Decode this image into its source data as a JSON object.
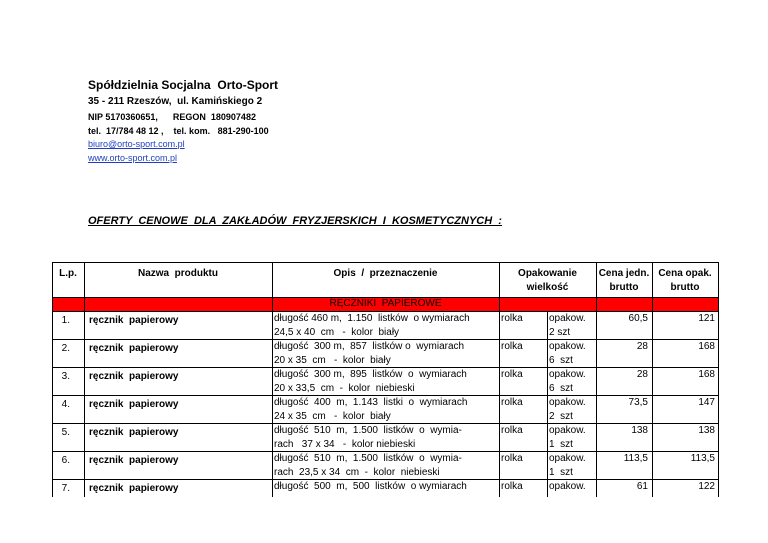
{
  "header": {
    "company": "Spółdzielnia Socjalna  Orto-Sport",
    "address": "35 - 211 Rzeszów,  ul. Kamińskiego 2",
    "ids": "NIP 5170360651,      REGON  180907482",
    "phones": "tel.  17/784 48 12 ,    tel. kom.   881-290-100",
    "email": "biuro@orto-sport.com.pl",
    "www": "www.orto-sport.com.pl"
  },
  "title": "OFERTY  CENOWE  DLA  ZAKŁADÓW  FRYZJERSKICH  I  KOSMETYCZNYCH  :",
  "table": {
    "columns": {
      "lp": [
        "L.p."
      ],
      "name": [
        "Nazwa  produktu"
      ],
      "desc": [
        "Opis  /  przeznaczenie"
      ],
      "pack": [
        "Opakowanie",
        "wielkość"
      ],
      "price_unit": [
        "Cena jedn.",
        "brutto"
      ],
      "price_pack": [
        "Cena opak.",
        "brutto"
      ]
    },
    "section": "RĘCZNIKI  PAPIEROWE",
    "rows": [
      {
        "lp": "1.",
        "name": "ręcznik  papierowy",
        "desc": [
          "długość 460 m,  1.150  listków  o wymiarach",
          "24,5 x 40  cm   -  kolor  biały"
        ],
        "unit": "rolka",
        "pack": [
          "opakow.",
          "2 szt"
        ],
        "price_unit": "60,5",
        "price_pack": "121"
      },
      {
        "lp": "2.",
        "name": "ręcznik  papierowy",
        "desc": [
          "długość  300 m,  857  listków o  wymiarach",
          "20 x 35  cm   -  kolor  biały"
        ],
        "unit": "rolka",
        "pack": [
          "opakow.",
          "6  szt"
        ],
        "price_unit": "28",
        "price_pack": "168"
      },
      {
        "lp": "3.",
        "name": "ręcznik  papierowy",
        "desc": [
          "długość  300 m,  895  listków  o  wymiarach",
          "20 x 33,5  cm  -  kolor  niebieski"
        ],
        "unit": "rolka",
        "pack": [
          "opakow.",
          "6  szt"
        ],
        "price_unit": "28",
        "price_pack": "168"
      },
      {
        "lp": "4.",
        "name": "ręcznik  papierowy",
        "desc": [
          "długość  400  m,  1.143  listki  o  wymiarach",
          "24 x 35  cm   -  kolor  biały"
        ],
        "unit": "rolka",
        "pack": [
          "opakow.",
          "2  szt"
        ],
        "price_unit": "73,5",
        "price_pack": "147"
      },
      {
        "lp": "5.",
        "name": "ręcznik  papierowy",
        "desc": [
          "długość  510  m,  1.500  listków  o  wymia-",
          "rach   37 x 34   -  kolor niebieski"
        ],
        "unit": "rolka",
        "pack": [
          "opakow.",
          "1  szt"
        ],
        "price_unit": "138",
        "price_pack": "138"
      },
      {
        "lp": "6.",
        "name": "ręcznik  papierowy",
        "desc": [
          "długość  510  m,  1.500  listków  o  wymia-",
          "rach  23,5 x 34  cm  -  kolor  niebieski"
        ],
        "unit": "rolka",
        "pack": [
          "opakow.",
          "1  szt"
        ],
        "price_unit": "113,5",
        "price_pack": "113,5"
      },
      {
        "lp": "7.",
        "name": "ręcznik  papierowy",
        "desc": [
          "długość  500  m,  500  listków  o wymiarach"
        ],
        "unit": "rolka",
        "pack": [
          "opakow."
        ],
        "price_unit": "61",
        "price_pack": "122"
      }
    ]
  }
}
